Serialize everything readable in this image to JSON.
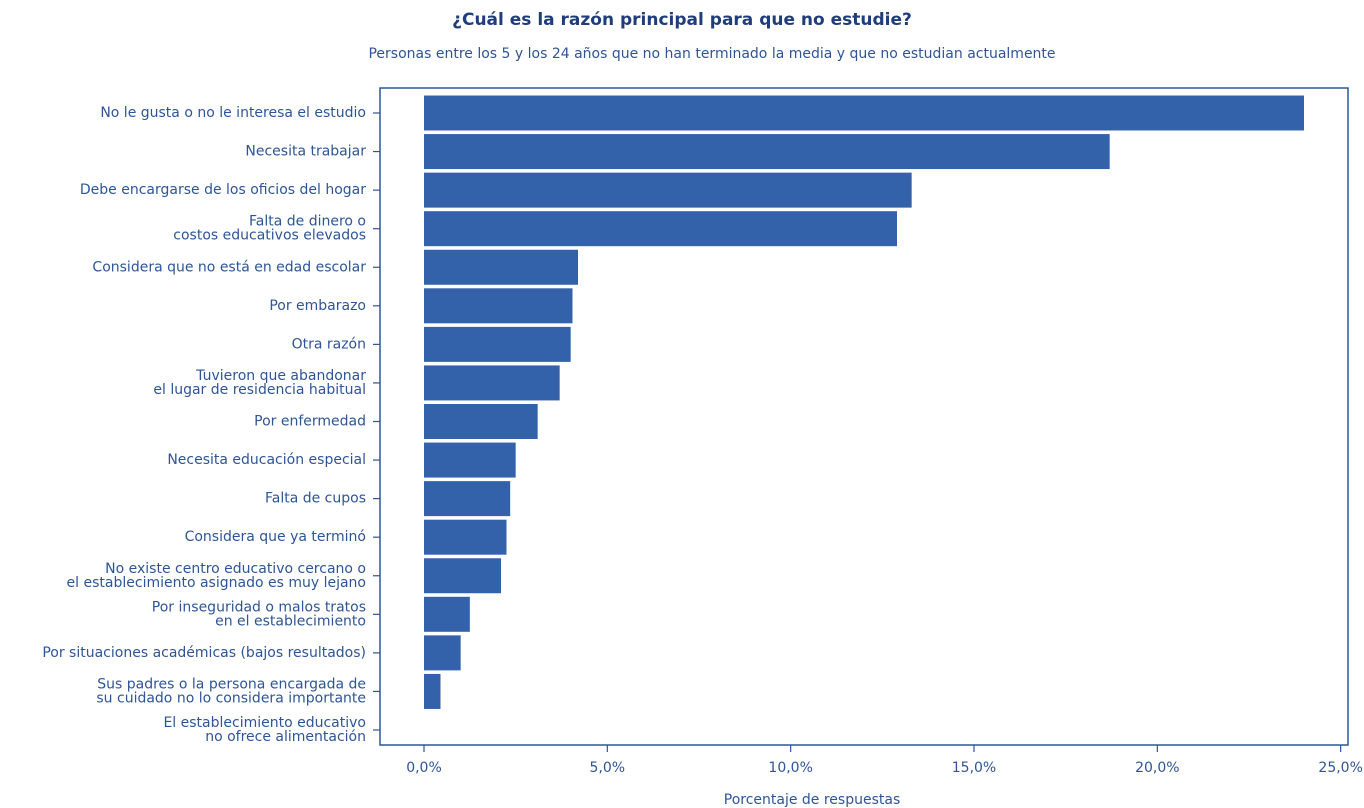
{
  "chart_data": {
    "type": "barh",
    "title": "¿Cuál es la razón principal para que no estudie?",
    "subtitle": "Personas entre los 5 y los 24 años que no han terminado la media y que no estudian actualmente",
    "x_label": "Porcentaje de respuestas",
    "categories": [
      [
        "No le gusta o no le interesa el estudio"
      ],
      [
        "Necesita trabajar"
      ],
      [
        "Debe encargarse de los oficios del hogar"
      ],
      [
        "Falta de dinero o",
        "costos educativos elevados"
      ],
      [
        "Considera que no está en edad escolar"
      ],
      [
        "Por embarazo"
      ],
      [
        "Otra razón"
      ],
      [
        "Tuvieron que abandonar",
        "el lugar de residencia habitual"
      ],
      [
        "Por enfermedad"
      ],
      [
        "Necesita educación especial"
      ],
      [
        "Falta de cupos"
      ],
      [
        "Considera que ya terminó"
      ],
      [
        "No existe centro educativo cercano o",
        "el establecimiento asignado es muy lejano"
      ],
      [
        "Por inseguridad o malos tratos",
        "en el establecimiento"
      ],
      [
        "Por situaciones académicas (bajos resultados)"
      ],
      [
        "Sus padres o la persona encargada de",
        "su cuidado no lo considera importante"
      ],
      [
        "El establecimiento educativo",
        "no ofrece alimentación"
      ]
    ],
    "values": [
      24.0,
      18.7,
      13.3,
      12.9,
      4.2,
      4.05,
      4.0,
      3.7,
      3.1,
      2.5,
      2.35,
      2.25,
      2.1,
      1.25,
      1.0,
      0.45,
      0
    ],
    "color": "#3462aa",
    "xlim": [
      -1.2,
      25.2
    ],
    "xticks": [
      {
        "value": 0,
        "label": "0,0%"
      },
      {
        "value": 5,
        "label": "5,0%"
      },
      {
        "value": 10,
        "label": "10,0%"
      },
      {
        "value": 15,
        "label": "15,0%"
      },
      {
        "value": 20,
        "label": "20,0%"
      },
      {
        "value": 25,
        "label": "25,0%"
      }
    ]
  }
}
